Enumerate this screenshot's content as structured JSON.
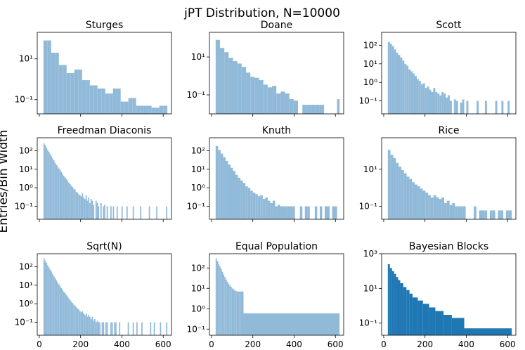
{
  "figure": {
    "suptitle": "jPT Distribution, N=10000",
    "ylabel": "Entries/Bin Width"
  },
  "colors": {
    "light": "#91bad9",
    "dark": "#1f77b4"
  },
  "chart_data": [
    {
      "type": "bar",
      "title": "Sturges",
      "yscale": "log",
      "color": "light",
      "xlim": [
        -10,
        640
      ],
      "ylim": [
        0.02,
        200
      ],
      "xticks": [
        0,
        200,
        400,
        600
      ],
      "xticklabels": [
        "",
        "",
        "",
        ""
      ],
      "yticks": [
        10,
        0.1
      ],
      "yticklabels": [
        "10¹",
        "10⁻¹"
      ],
      "edges": [
        20,
        38.7,
        57.4,
        76.1,
        94.8,
        113.5,
        132.2,
        150.9,
        169.6,
        188.3,
        207,
        225.7,
        244.4,
        263.1,
        281.8,
        300.5,
        319.2,
        337.9,
        356.6,
        375.3,
        394,
        412.7,
        431.4,
        450.1,
        468.8,
        487.5,
        506.2,
        524.9,
        543.6,
        562.3,
        581,
        599.7,
        620
      ],
      "values": [
        80,
        80,
        20,
        20,
        5,
        5,
        2,
        2,
        3,
        3,
        0.9,
        0.9,
        0.5,
        0.5,
        0.35,
        0.35,
        0.2,
        0.2,
        0.35,
        0.35,
        0.08,
        0.08,
        0.12,
        0.12,
        0.05,
        0.05,
        0.05,
        0.05,
        0.04,
        0.04,
        0.05,
        0.05
      ]
    },
    {
      "type": "bar",
      "title": "Doane",
      "yscale": "log",
      "color": "light",
      "xlim": [
        -10,
        640
      ],
      "ylim": [
        0.01,
        200
      ],
      "xticks": [
        0,
        200,
        400,
        600
      ],
      "xticklabels": [
        "",
        "",
        "",
        ""
      ],
      "yticks": [
        10,
        0.1
      ],
      "yticklabels": [
        "10¹",
        "10⁻¹"
      ],
      "edges": [
        20,
        41,
        62,
        83,
        104,
        125,
        146,
        167,
        188,
        209,
        230,
        251,
        272,
        293,
        314,
        335,
        356,
        377,
        398,
        419,
        440,
        461,
        482,
        503,
        524,
        545,
        566,
        587,
        608,
        620
      ],
      "values": [
        80,
        30,
        18,
        9,
        6,
        4.5,
        3,
        1.5,
        0.9,
        0.8,
        0.6,
        0.35,
        0.25,
        0.3,
        0.12,
        0.15,
        0.12,
        0.06,
        0.05,
        null,
        0.03,
        0.03,
        0.03,
        0.03,
        0.03,
        null,
        null,
        null,
        0.06
      ]
    },
    {
      "type": "bar",
      "title": "Scott",
      "yscale": "log",
      "color": "light",
      "xlim": [
        -10,
        640
      ],
      "ylim": [
        0.02,
        500
      ],
      "xticks": [
        0,
        200,
        400,
        600
      ],
      "xticklabels": [
        "",
        "",
        "",
        ""
      ],
      "yticks": [
        100,
        10,
        1,
        0.1
      ],
      "yticklabels": [
        "10²",
        "10¹",
        "10⁰",
        "10⁻¹"
      ],
      "edges": [
        20,
        30,
        40,
        50,
        60,
        70,
        80,
        90,
        100,
        110,
        120,
        130,
        140,
        150,
        160,
        170,
        180,
        190,
        200,
        210,
        220,
        230,
        240,
        250,
        260,
        270,
        280,
        290,
        300,
        310,
        320,
        330,
        340,
        350,
        360,
        370,
        380,
        390,
        400,
        410,
        420,
        430,
        440,
        450,
        460,
        470,
        480,
        490,
        500,
        510,
        520,
        530,
        540,
        550,
        560,
        570,
        580,
        590,
        600,
        610,
        620
      ],
      "values": [
        150,
        120,
        90,
        60,
        40,
        30,
        22,
        15,
        10,
        8,
        5,
        4,
        3,
        2.2,
        1.5,
        1.2,
        0.8,
        0.9,
        0.5,
        0.6,
        0.4,
        0.3,
        0.5,
        0.3,
        0.25,
        0.2,
        0.3,
        0.25,
        0.15,
        0.2,
        0.1,
        null,
        0.12,
        0.1,
        null,
        0.08,
        0.12,
        null,
        0.1,
        null,
        null,
        null,
        null,
        0.1,
        null,
        null,
        null,
        0.1,
        null,
        null,
        null,
        null,
        0.1,
        null,
        null,
        0.1,
        null,
        null,
        0.1,
        null
      ]
    },
    {
      "type": "bar",
      "title": "Freedman Diaconis",
      "yscale": "log",
      "color": "light",
      "xlim": [
        -10,
        640
      ],
      "ylim": [
        0.02,
        500
      ],
      "xticks": [
        0,
        200,
        400,
        600
      ],
      "xticklabels": [
        "",
        "",
        "",
        ""
      ],
      "yticks": [
        100,
        10,
        1,
        0.1
      ],
      "yticklabels": [
        "10²",
        "10¹",
        "10⁰",
        "10⁻¹"
      ],
      "edges": [
        20,
        26,
        32,
        38,
        44,
        50,
        56,
        62,
        68,
        74,
        80,
        86,
        92,
        98,
        104,
        110,
        116,
        122,
        128,
        134,
        140,
        146,
        152,
        158,
        164,
        170,
        176,
        182,
        188,
        194,
        200,
        206,
        212,
        218,
        224,
        230,
        236,
        242,
        248,
        254,
        260,
        266,
        272,
        278,
        284,
        290,
        296,
        302,
        308,
        314,
        320,
        326,
        332,
        338,
        344,
        350,
        356,
        362,
        368,
        374,
        380,
        386,
        392,
        398,
        404,
        410,
        416,
        422,
        428,
        434,
        440,
        446,
        452,
        458,
        464,
        470,
        476,
        482,
        488,
        494,
        500,
        506,
        512,
        518,
        524,
        530,
        536,
        542,
        548,
        554,
        560,
        566,
        572,
        578,
        584,
        590,
        596,
        602,
        608,
        614,
        620
      ],
      "values": [
        250,
        200,
        150,
        110,
        85,
        65,
        50,
        38,
        30,
        22,
        17,
        14,
        11,
        9,
        7,
        5.5,
        4.5,
        3.6,
        3,
        2.4,
        1.9,
        1.6,
        1.3,
        1.1,
        0.9,
        0.8,
        0.6,
        0.55,
        0.45,
        0.4,
        0.35,
        0.5,
        0.3,
        0.25,
        0.4,
        0.2,
        0.3,
        0.15,
        0.25,
        0.2,
        0.12,
        null,
        0.2,
        0.15,
        0.1,
        null,
        0.15,
        null,
        0.1,
        0.12,
        null,
        0.1,
        null,
        null,
        0.1,
        null,
        0.1,
        null,
        null,
        0.1,
        null,
        null,
        null,
        0.1,
        null,
        null,
        null,
        0.1,
        null,
        null,
        null,
        null,
        0.1,
        null,
        null,
        null,
        null,
        null,
        0.1,
        null,
        null,
        null,
        null,
        null,
        null,
        0.1,
        null,
        null,
        null,
        null,
        null,
        0.1,
        null,
        null,
        null,
        null,
        null,
        null,
        null,
        0.1
      ]
    },
    {
      "type": "bar",
      "title": "Knuth",
      "yscale": "log",
      "color": "light",
      "xlim": [
        -10,
        640
      ],
      "ylim": [
        0.02,
        500
      ],
      "xticks": [
        0,
        200,
        400,
        600
      ],
      "xticklabels": [
        "",
        "",
        "",
        ""
      ],
      "yticks": [
        100,
        10,
        1,
        0.1
      ],
      "yticklabels": [
        "10²",
        "10¹",
        "10⁰",
        "10⁻¹"
      ],
      "edges": [
        20,
        32,
        44,
        56,
        68,
        80,
        92,
        104,
        116,
        128,
        140,
        152,
        164,
        176,
        188,
        200,
        212,
        224,
        236,
        248,
        260,
        272,
        284,
        296,
        308,
        320,
        332,
        344,
        356,
        368,
        380,
        392,
        404,
        416,
        428,
        440,
        452,
        464,
        476,
        488,
        500,
        512,
        524,
        536,
        548,
        560,
        572,
        584,
        596,
        608,
        620
      ],
      "values": [
        180,
        110,
        70,
        45,
        28,
        18,
        12,
        8,
        5,
        3.5,
        2.5,
        1.8,
        1.2,
        1,
        0.7,
        0.55,
        0.45,
        0.35,
        0.4,
        0.25,
        0.3,
        0.2,
        0.15,
        0.2,
        0.1,
        0.12,
        0.1,
        0.1,
        0.1,
        0.1,
        0.1,
        0.1,
        null,
        null,
        0.1,
        null,
        0.1,
        0.1,
        null,
        null,
        0.1,
        null,
        0.1,
        null,
        0.1,
        0.1,
        null,
        0.1,
        0.1,
        null
      ]
    },
    {
      "type": "bar",
      "title": "Rice",
      "yscale": "log",
      "color": "light",
      "xlim": [
        -10,
        640
      ],
      "ylim": [
        0.02,
        500
      ],
      "xticks": [
        0,
        200,
        400,
        600
      ],
      "xticklabels": [
        "",
        "",
        "",
        ""
      ],
      "yticks": [
        10,
        0.1
      ],
      "yticklabels": [
        "10¹",
        "10⁻¹"
      ],
      "edges": [
        20,
        33,
        46,
        59,
        72,
        85,
        98,
        111,
        124,
        137,
        150,
        163,
        176,
        189,
        202,
        215,
        228,
        241,
        254,
        267,
        280,
        293,
        306,
        319,
        332,
        345,
        358,
        371,
        384,
        397,
        410,
        423,
        436,
        449,
        462,
        475,
        488,
        501,
        514,
        527,
        540,
        553,
        566,
        579,
        592,
        605,
        620
      ],
      "values": [
        110,
        60,
        40,
        22,
        14,
        9,
        6,
        4,
        3,
        2,
        1.5,
        1.2,
        0.9,
        0.7,
        0.55,
        0.4,
        0.3,
        0.4,
        0.3,
        0.25,
        0.3,
        0.15,
        0.2,
        0.12,
        0.15,
        0.1,
        0.1,
        0.1,
        0.1,
        null,
        null,
        null,
        0.1,
        null,
        0.06,
        0.06,
        0.06,
        null,
        0.06,
        0.06,
        null,
        0.06,
        0.06,
        null,
        0.06,
        0.06
      ]
    },
    {
      "type": "bar",
      "title": "Sqrt(N)",
      "yscale": "log",
      "color": "light",
      "xlim": [
        -10,
        640
      ],
      "ylim": [
        0.02,
        500
      ],
      "xticks": [
        0,
        200,
        400,
        600
      ],
      "xticklabels": [
        "0",
        "200",
        "400",
        "600"
      ],
      "yticks": [
        100,
        10,
        1,
        0.1
      ],
      "yticklabels": [
        "10²",
        "10¹",
        "10⁰",
        "10⁻¹"
      ],
      "edges": [
        20,
        26,
        32,
        38,
        44,
        50,
        56,
        62,
        68,
        74,
        80,
        86,
        92,
        98,
        104,
        110,
        116,
        122,
        128,
        134,
        140,
        146,
        152,
        158,
        164,
        170,
        176,
        182,
        188,
        194,
        200,
        206,
        212,
        218,
        224,
        230,
        236,
        242,
        248,
        254,
        260,
        266,
        272,
        278,
        284,
        290,
        296,
        302,
        308,
        314,
        320,
        326,
        332,
        338,
        344,
        350,
        356,
        362,
        368,
        374,
        380,
        386,
        392,
        398,
        404,
        410,
        416,
        422,
        428,
        434,
        440,
        446,
        452,
        458,
        464,
        470,
        476,
        482,
        488,
        494,
        500,
        506,
        512,
        518,
        524,
        530,
        536,
        542,
        548,
        554,
        560,
        566,
        572,
        578,
        584,
        590,
        596,
        602,
        608,
        614,
        620
      ],
      "values": [
        280,
        210,
        160,
        120,
        90,
        70,
        55,
        40,
        30,
        24,
        18,
        14,
        11,
        9,
        7,
        5.5,
        4.5,
        3.8,
        3,
        2.5,
        2,
        1.6,
        1.3,
        1.1,
        0.9,
        0.8,
        0.65,
        0.55,
        0.5,
        0.4,
        0.35,
        0.4,
        0.3,
        0.25,
        0.3,
        0.2,
        0.25,
        0.2,
        0.15,
        0.2,
        0.12,
        0.15,
        0.1,
        0.12,
        0.1,
        0.1,
        null,
        0.1,
        0.1,
        null,
        0.1,
        0.1,
        null,
        null,
        0.1,
        0.1,
        null,
        0.1,
        0.1,
        null,
        null,
        0.1,
        null,
        null,
        null,
        null,
        null,
        null,
        0.1,
        null,
        null,
        null,
        0.1,
        null,
        null,
        0.1,
        null,
        null,
        null,
        0.1,
        null,
        null,
        null,
        null,
        null,
        null,
        0.1,
        null,
        null,
        0.1,
        null,
        null,
        null,
        null,
        0.1,
        null,
        null,
        null,
        null,
        0.1
      ]
    },
    {
      "type": "bar",
      "title": "Equal Population",
      "yscale": "log",
      "color": "light",
      "xlim": [
        -10,
        640
      ],
      "ylim": [
        0.05,
        500
      ],
      "xticks": [
        0,
        200,
        400,
        600
      ],
      "xticklabels": [
        "0",
        "200",
        "400",
        "600"
      ],
      "yticks": [
        100,
        10,
        1,
        0.1
      ],
      "yticklabels": [
        "10²",
        "10¹",
        "10⁰",
        "10⁻¹"
      ],
      "edges": [
        20,
        26,
        32,
        38,
        44,
        50,
        56,
        62,
        68,
        74,
        80,
        86,
        92,
        98,
        104,
        110,
        116,
        122,
        128,
        134,
        140,
        155,
        620
      ],
      "values": [
        300,
        220,
        160,
        120,
        90,
        65,
        48,
        36,
        27,
        21,
        17,
        14,
        12,
        10,
        9,
        8,
        7.5,
        7,
        7,
        7,
        7,
        0.6
      ]
    },
    {
      "type": "bar",
      "title": "Bayesian Blocks",
      "yscale": "log",
      "color": "dark",
      "xlim": [
        -10,
        640
      ],
      "ylim": [
        0.02,
        1000
      ],
      "xticks": [
        0,
        200,
        400,
        600
      ],
      "xticklabels": [
        "0",
        "200",
        "400",
        "600"
      ],
      "yticks": [
        1000,
        10,
        0.1
      ],
      "yticklabels": [
        "10³",
        "10¹",
        "10⁻¹"
      ],
      "edges": [
        20,
        30,
        40,
        50,
        60,
        70,
        80,
        95,
        110,
        125,
        140,
        165,
        190,
        220,
        250,
        290,
        330,
        390,
        620
      ],
      "values": [
        250,
        150,
        100,
        70,
        45,
        30,
        20,
        12,
        8,
        5,
        3,
        2,
        1.3,
        0.8,
        0.5,
        0.3,
        0.2,
        0.05
      ]
    }
  ]
}
